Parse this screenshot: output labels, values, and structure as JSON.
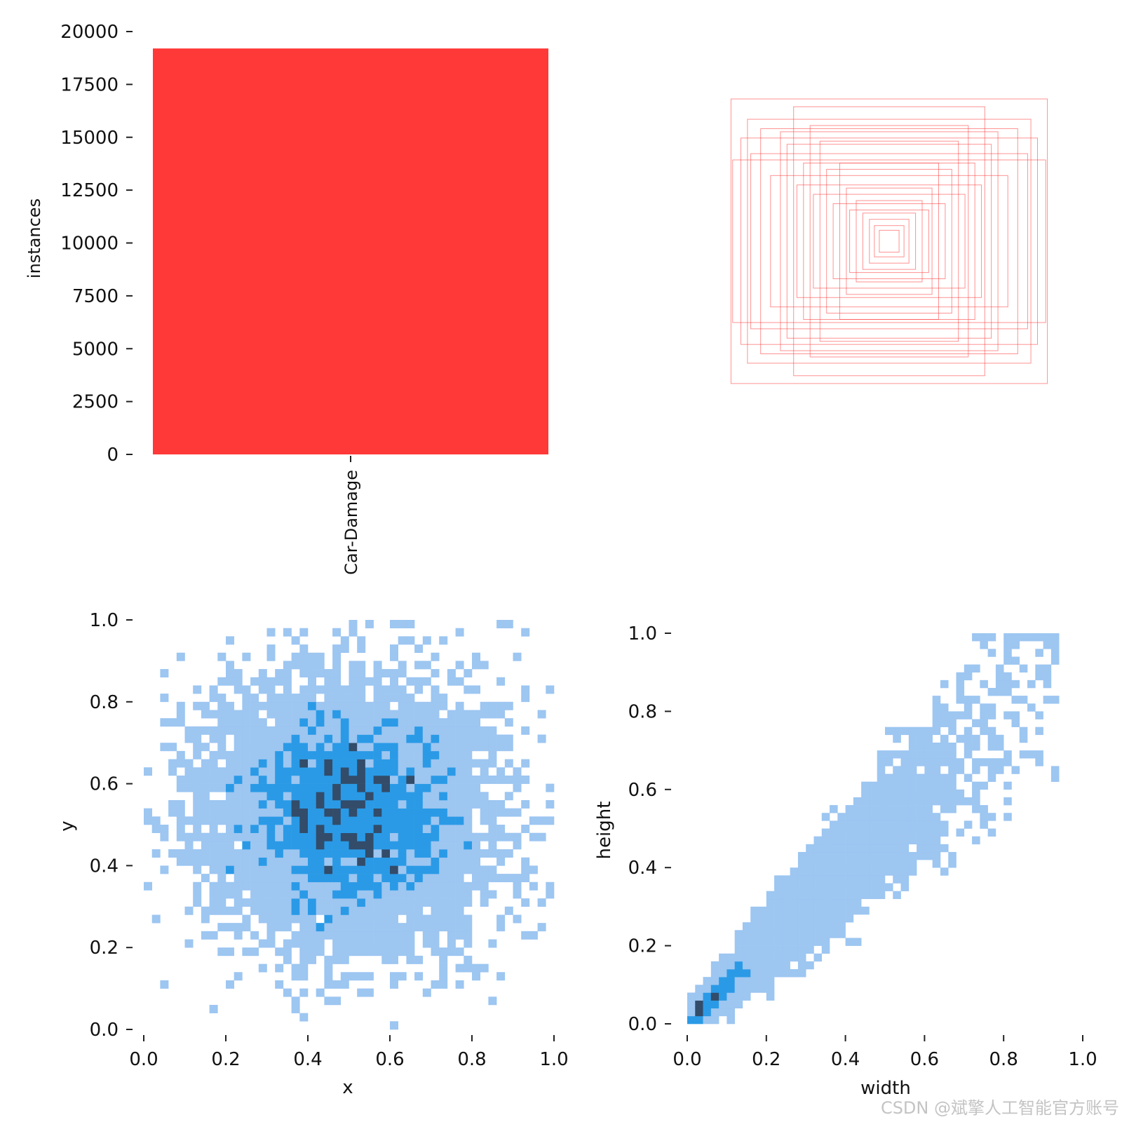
{
  "chart_data": [
    {
      "type": "bar",
      "panel": "top-left",
      "categories": [
        "Car-Damage"
      ],
      "values": [
        19200
      ],
      "ylabel": "instances",
      "xlabel": "",
      "ylim": [
        0,
        20000
      ],
      "yticks": [
        "0",
        "2500",
        "5000",
        "7500",
        "10000",
        "12500",
        "15000",
        "17500",
        "20000"
      ],
      "color": "#FF3838"
    },
    {
      "type": "box-overlay",
      "panel": "top-right",
      "description_units": "normalized box width/height centered at (0.5, 0.5)",
      "boxes": [
        [
          0.96,
          0.91
        ],
        [
          0.86,
          0.78
        ],
        [
          0.78,
          0.72
        ],
        [
          0.62,
          0.62
        ],
        [
          0.95,
          0.52
        ],
        [
          0.48,
          0.74
        ],
        [
          0.84,
          0.56
        ],
        [
          0.42,
          0.64
        ],
        [
          0.72,
          0.42
        ],
        [
          0.38,
          0.46
        ],
        [
          0.56,
          0.36
        ],
        [
          0.3,
          0.5
        ],
        [
          0.46,
          0.3
        ],
        [
          0.26,
          0.34
        ],
        [
          0.34,
          0.24
        ],
        [
          0.2,
          0.26
        ],
        [
          0.16,
          0.18
        ],
        [
          0.12,
          0.14
        ],
        [
          0.09,
          0.1
        ],
        [
          0.06,
          0.07
        ],
        [
          0.66,
          0.7
        ],
        [
          0.52,
          0.5
        ],
        [
          0.24,
          0.2
        ],
        [
          0.9,
          0.66
        ],
        [
          0.58,
          0.86
        ]
      ],
      "color": "#FF3838"
    },
    {
      "type": "heatmap",
      "panel": "bottom-left",
      "xlabel": "x",
      "ylabel": "y",
      "xlim": [
        0,
        1.0
      ],
      "ylim": [
        0,
        1.0
      ],
      "xticks": [
        "0.0",
        "0.2",
        "0.4",
        "0.6",
        "0.8",
        "1.0"
      ],
      "yticks": [
        "0.0",
        "0.2",
        "0.4",
        "0.6",
        "0.8",
        "1.0"
      ],
      "distribution": {
        "kind": "2d-gaussian",
        "mean": [
          0.5,
          0.53
        ],
        "std": [
          0.17,
          0.16
        ],
        "bins": 50,
        "count": 19200
      }
    },
    {
      "type": "heatmap",
      "panel": "bottom-right",
      "xlabel": "width",
      "ylabel": "height",
      "xlim": [
        0,
        1.0
      ],
      "ylim": [
        0,
        1.0
      ],
      "xticks": [
        "0.0",
        "0.2",
        "0.4",
        "0.6",
        "0.8",
        "1.0"
      ],
      "yticks": [
        "0.0",
        "0.2",
        "0.4",
        "0.6",
        "0.8",
        "1.0"
      ],
      "distribution": {
        "kind": "correlated-diagonal",
        "peak": [
          0.06,
          0.06
        ],
        "bins": 50,
        "count": 19200
      }
    }
  ],
  "colors": {
    "bar": "#FF3838",
    "heat_light": "#9DC6F1",
    "heat_mid": "#2A9AE6",
    "heat_dark": "#324C6A",
    "axis": "#222222"
  },
  "watermark": "CSDN @斌擎人工智能官方账号"
}
